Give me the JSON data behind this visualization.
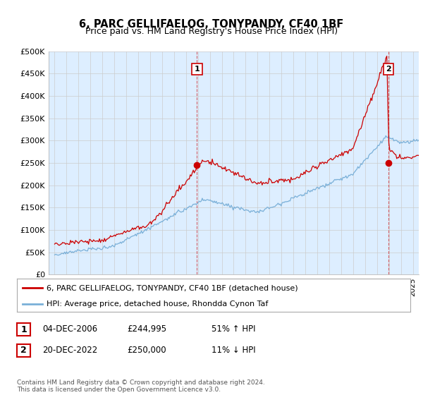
{
  "title": "6, PARC GELLIFAELOG, TONYPANDY, CF40 1BF",
  "subtitle": "Price paid vs. HM Land Registry's House Price Index (HPI)",
  "ylim": [
    0,
    500000
  ],
  "yticks": [
    0,
    50000,
    100000,
    150000,
    200000,
    250000,
    300000,
    350000,
    400000,
    450000,
    500000
  ],
  "ytick_labels": [
    "£0",
    "£50K",
    "£100K",
    "£150K",
    "£200K",
    "£250K",
    "£300K",
    "£350K",
    "£400K",
    "£450K",
    "£500K"
  ],
  "hpi_color": "#7ab0d8",
  "price_color": "#cc0000",
  "vline_color": "#cc0000",
  "chart_bg": "#ddeeff",
  "sale1_year": 2006.92,
  "sale1_price": 244995,
  "sale2_year": 2022.96,
  "sale2_price": 250000,
  "legend_line1": "6, PARC GELLIFAELOG, TONYPANDY, CF40 1BF (detached house)",
  "legend_line2": "HPI: Average price, detached house, Rhondda Cynon Taf",
  "table_row1_num": "1",
  "table_row1_date": "04-DEC-2006",
  "table_row1_price": "£244,995",
  "table_row1_hpi": "51% ↑ HPI",
  "table_row2_num": "2",
  "table_row2_date": "20-DEC-2022",
  "table_row2_price": "£250,000",
  "table_row2_hpi": "11% ↓ HPI",
  "footer": "Contains HM Land Registry data © Crown copyright and database right 2024.\nThis data is licensed under the Open Government Licence v3.0.",
  "background_color": "#ffffff",
  "grid_color": "#cccccc"
}
